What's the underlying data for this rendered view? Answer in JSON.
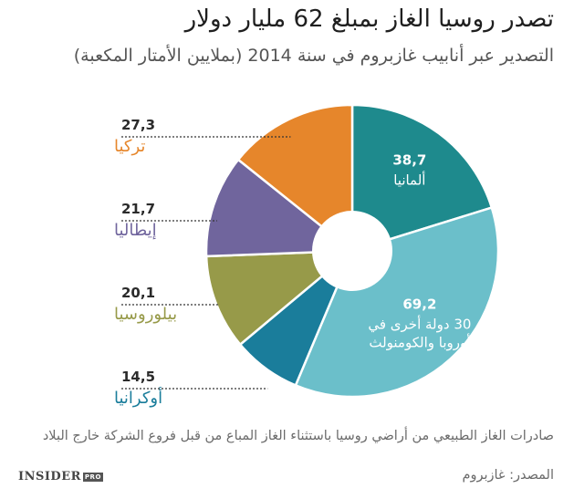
{
  "header": {
    "title": "تصدر روسيا الغاز بمبلغ 62 مليار دولار",
    "subtitle": "التصدير عبر أنابيب غازبروم في سنة 2014 (بملايين الأمتار المكعبة)"
  },
  "chart_data": {
    "type": "pie",
    "donut": true,
    "slices": [
      {
        "label": "ألمانيا",
        "value": 38.7,
        "value_text": "38,7",
        "color": "#1e8a8d"
      },
      {
        "label": "30 دولة أخرى في أوروبا والكومنولث",
        "label_lines": [
          "30 دولة أخرى في",
          "أوروبا والكومنولث"
        ],
        "value": 69.2,
        "value_text": "69,2",
        "color": "#6bbfca"
      },
      {
        "label": "أوكرانيا",
        "value": 14.5,
        "value_text": "14,5",
        "color": "#1a7d9b"
      },
      {
        "label": "بيلوروسيا",
        "value": 20.1,
        "value_text": "20,1",
        "color": "#979a49"
      },
      {
        "label": "إيطاليا",
        "value": 21.7,
        "value_text": "21,7",
        "color": "#70659d"
      },
      {
        "label": "تركيا",
        "value": 27.3,
        "value_text": "27,3",
        "color": "#e6862b"
      }
    ]
  },
  "footnote": "صادرات الغاز الطبيعي من أراضي روسيا باستثناء الغاز المباع من قبل فروع الشركة خارج البلاد",
  "source": "المصدر: غازبروم",
  "brand": {
    "name": "INSIDER",
    "badge": "PRO"
  }
}
